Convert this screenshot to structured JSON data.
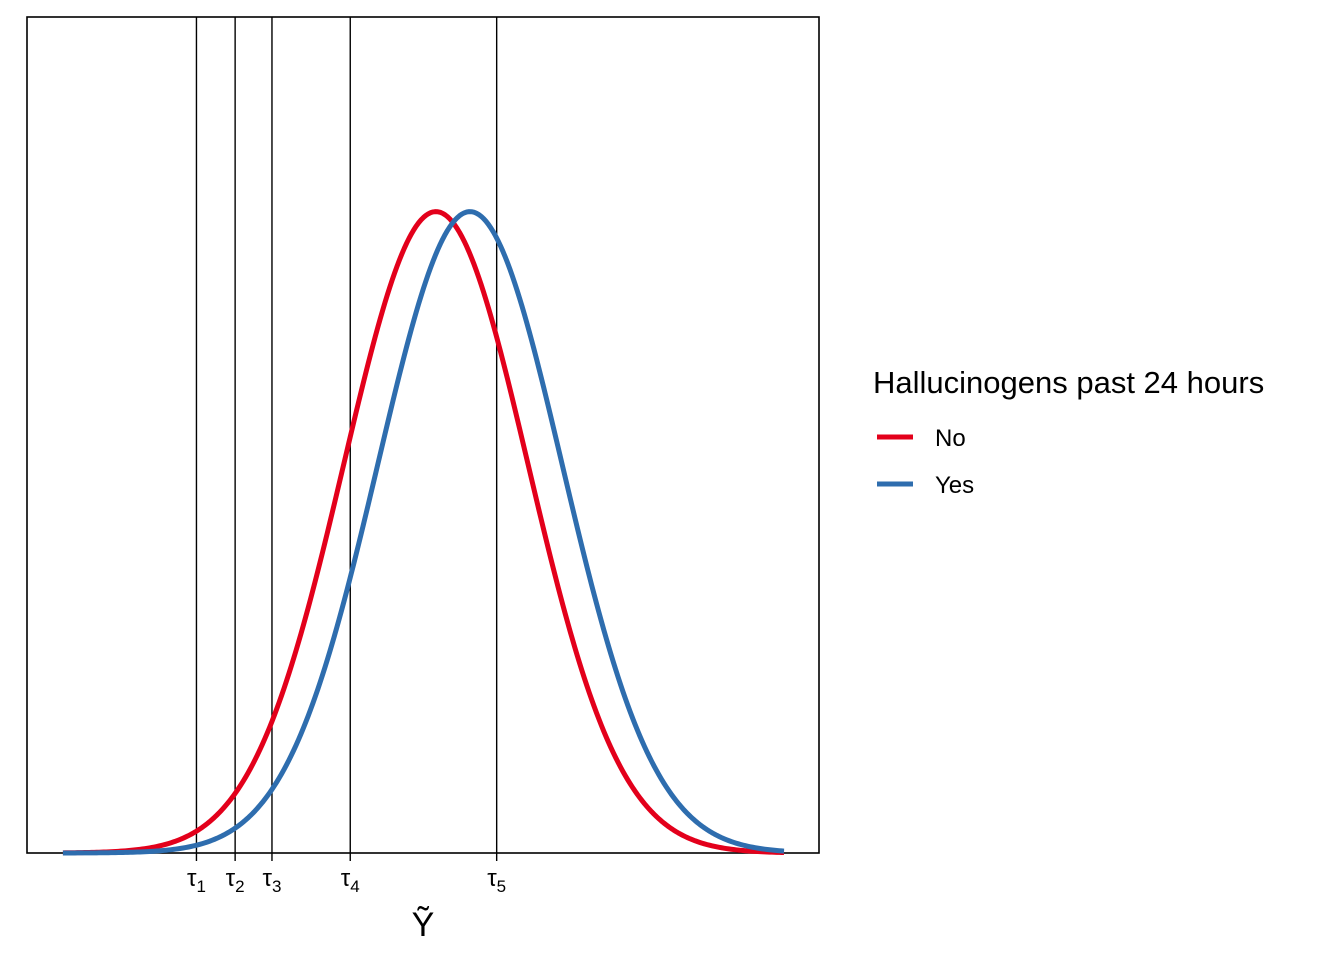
{
  "chart_data": {
    "type": "line",
    "xlabel": "Ỹ",
    "ylabel": "",
    "xlim": [
      -3.84,
      4.76
    ],
    "ylim": [
      0,
      0.52
    ],
    "grid": false,
    "thresholds": [
      {
        "name": "tau1",
        "symbol": "τ",
        "sub": "1",
        "x": -2.0
      },
      {
        "name": "tau2",
        "symbol": "τ",
        "sub": "2",
        "x": -1.58
      },
      {
        "name": "tau3",
        "symbol": "τ",
        "sub": "3",
        "x": -1.18
      },
      {
        "name": "tau4",
        "symbol": "τ",
        "sub": "4",
        "x": -0.33
      },
      {
        "name": "tau5",
        "symbol": "τ",
        "sub": "5",
        "x": 1.26
      }
    ],
    "series": [
      {
        "name": "No",
        "distribution": "normal",
        "mean": 0.6,
        "sd": 1.0,
        "x_range": [
          -3.45,
          4.38
        ],
        "color": "#E3001B"
      },
      {
        "name": "Yes",
        "distribution": "normal",
        "mean": 0.97,
        "sd": 1.0,
        "x_range": [
          -3.45,
          4.38
        ],
        "color": "#2E6DAE"
      }
    ],
    "legend": {
      "title": "Hallucinogens past 24 hours",
      "position": "right"
    }
  }
}
